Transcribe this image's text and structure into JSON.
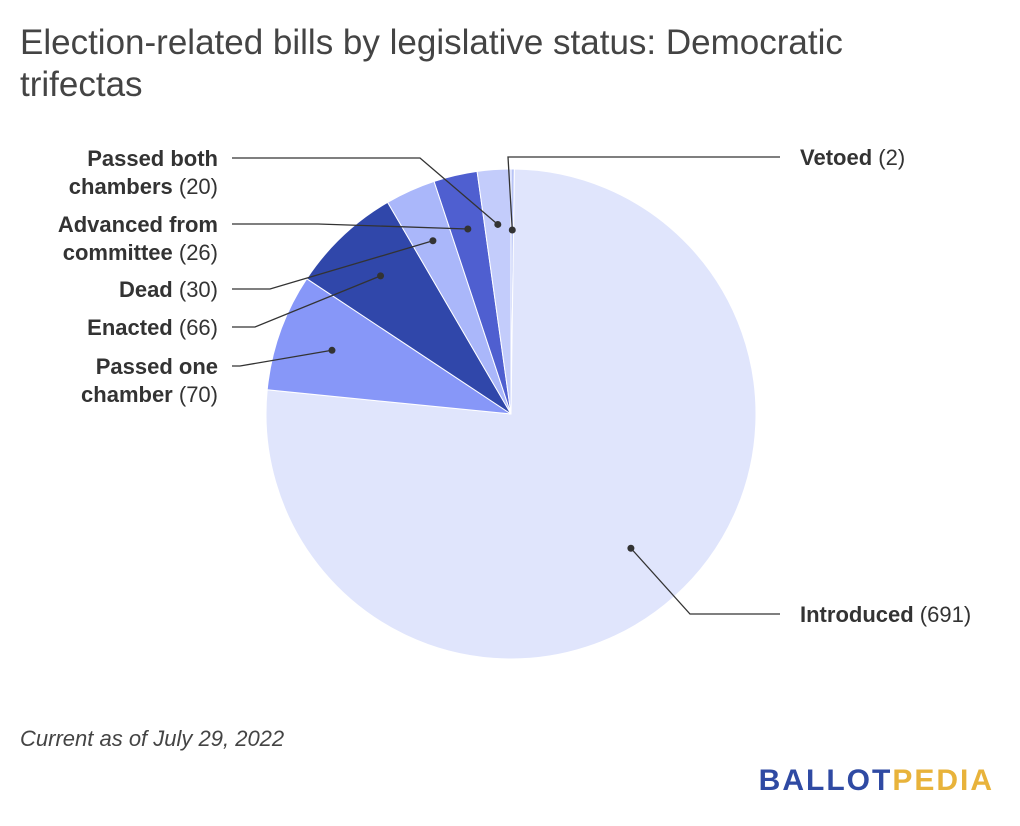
{
  "title": "Election-related bills by legislative status: Democratic trifectas",
  "footnote": "Current as of July 29, 2022",
  "logo": {
    "part1": "BALLOT",
    "part2": "PEDIA"
  },
  "chart_data": {
    "type": "pie",
    "slices": [
      {
        "name": "Vetoed",
        "value": 2,
        "color": "#b8c4f7"
      },
      {
        "name": "Introduced",
        "value": 691,
        "color": "#e0e5fc"
      },
      {
        "name": "Passed one chamber",
        "value": 70,
        "color": "#8797f8"
      },
      {
        "name": "Enacted",
        "value": 66,
        "color": "#3047aa"
      },
      {
        "name": "Dead",
        "value": 30,
        "color": "#aab7fa"
      },
      {
        "name": "Advanced from committee",
        "value": 26,
        "color": "#4f5fd0"
      },
      {
        "name": "Passed both chambers",
        "value": 20,
        "color": "#c3ccfb"
      }
    ]
  }
}
